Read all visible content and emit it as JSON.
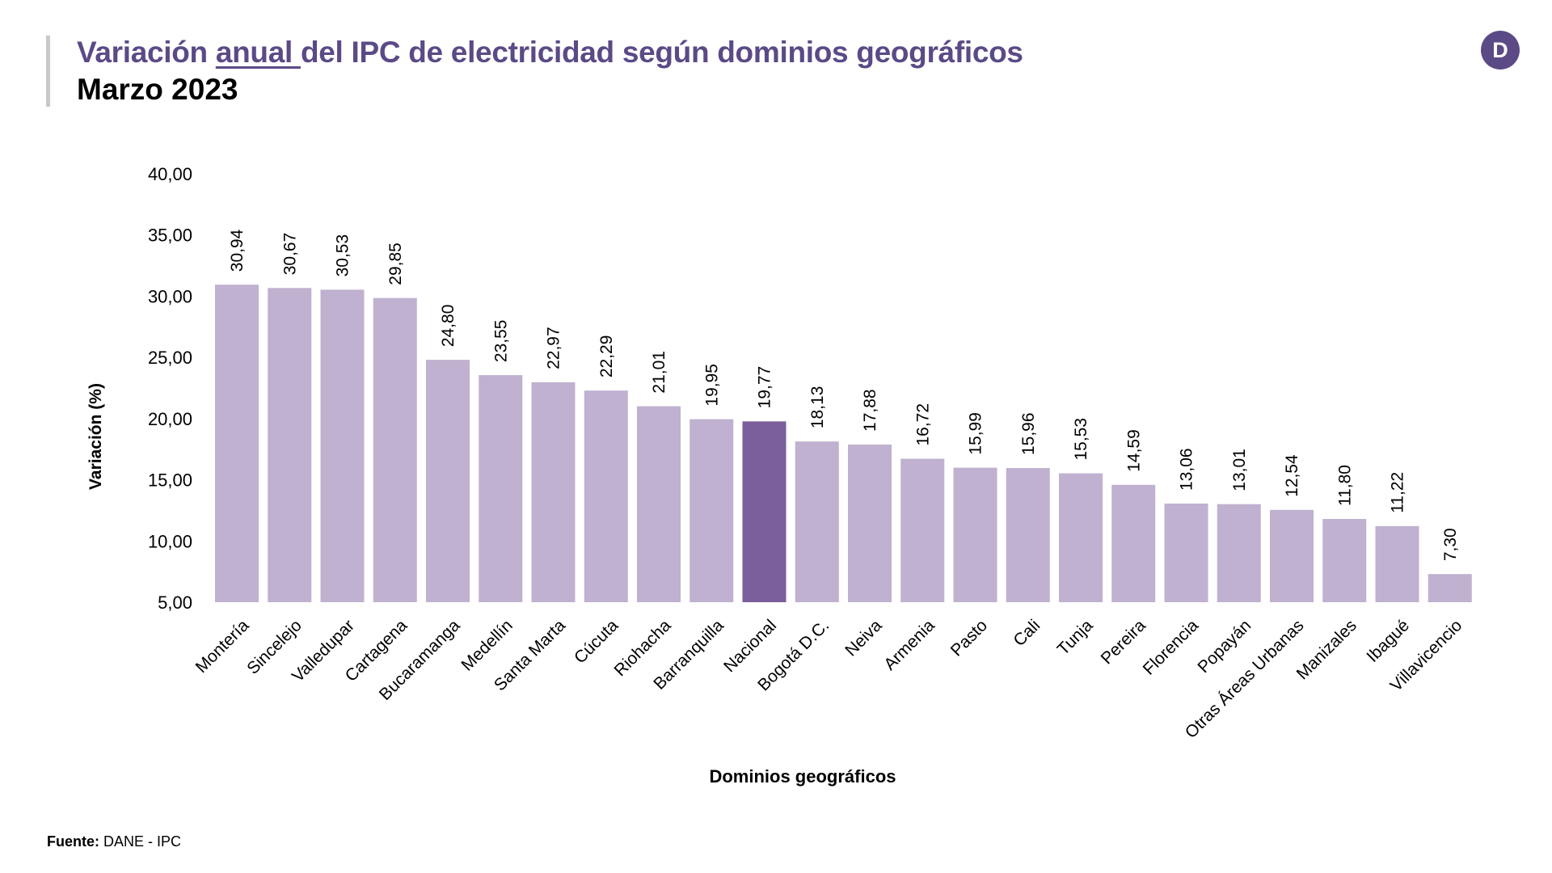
{
  "header": {
    "title_before": "Variación ",
    "title_underlined": "anual ",
    "title_after": "del IPC de electricidad según dominios geográficos",
    "subtitle": "Marzo 2023",
    "logo_letter": "D"
  },
  "source": {
    "label": "Fuente:",
    "text": "DANE - IPC"
  },
  "colors": {
    "brand": "#5b4a86",
    "bar": "#bfb1cf",
    "bar_highlight": "#7b5e9c"
  },
  "chart_data": {
    "type": "bar",
    "title": "Variación anual del IPC de electricidad según dominios geográficos",
    "subtitle": "Marzo 2023",
    "xlabel": "Dominios geográficos",
    "ylabel": "Variación (%)",
    "ylim": [
      5,
      40
    ],
    "yticks": [
      "5,00",
      "10,00",
      "15,00",
      "20,00",
      "25,00",
      "30,00",
      "35,00",
      "40,00"
    ],
    "ytick_values": [
      5,
      10,
      15,
      20,
      25,
      30,
      35,
      40
    ],
    "grid": false,
    "legend": "none",
    "highlight_category": "Nacional",
    "categories": [
      "Montería",
      "Sincelejo",
      "Valledupar",
      "Cartagena",
      "Bucaramanga",
      "Medellín",
      "Santa Marta",
      "Cúcuta",
      "Riohacha",
      "Barranquilla",
      "Nacional",
      "Bogotá D.C.",
      "Neiva",
      "Armenia",
      "Pasto",
      "Cali",
      "Tunja",
      "Pereira",
      "Florencia",
      "Popayán",
      "Otras Áreas Urbanas",
      "Manizales",
      "Ibagué",
      "Villavicencio"
    ],
    "values": [
      30.94,
      30.67,
      30.53,
      29.85,
      24.8,
      23.55,
      22.97,
      22.29,
      21.01,
      19.95,
      19.77,
      18.13,
      17.88,
      16.72,
      15.99,
      15.96,
      15.53,
      14.59,
      13.06,
      13.01,
      12.54,
      11.8,
      11.22,
      7.3
    ],
    "value_labels": [
      "30,94",
      "30,67",
      "30,53",
      "29,85",
      "24,80",
      "23,55",
      "22,97",
      "22,29",
      "21,01",
      "19,95",
      "19,77",
      "18,13",
      "17,88",
      "16,72",
      "15,99",
      "15,96",
      "15,53",
      "14,59",
      "13,06",
      "13,01",
      "12,54",
      "11,80",
      "11,22",
      "7,30"
    ]
  }
}
